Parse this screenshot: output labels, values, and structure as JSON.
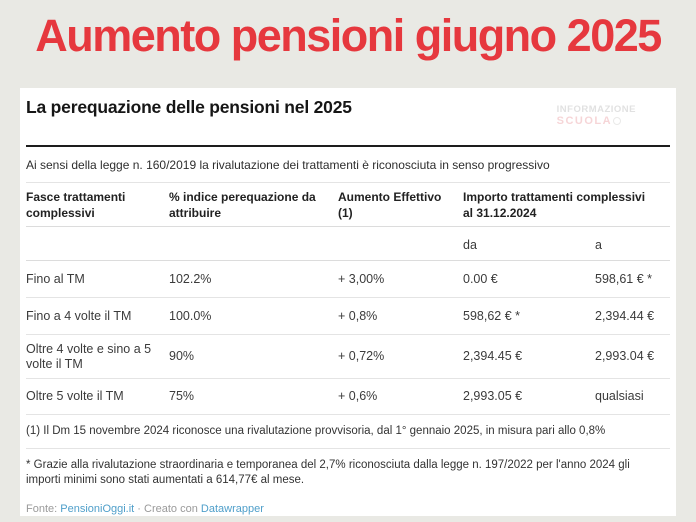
{
  "page": {
    "background_color": "#e9e9e4",
    "title": "Aumento pensioni giugno 2025",
    "title_color": "#e6383e"
  },
  "card": {
    "title": "La perequazione delle pensioni nel 2025",
    "watermark": {
      "line1": "INFORMAZIONE",
      "line2": "SCUOLA"
    },
    "intro": "Ai sensi della legge n. 160/2019 la rivalutazione dei trattamenti è riconosciuta in senso progressivo",
    "table": {
      "col_fasce": "Fasce trattamenti complessivi",
      "col_indice": "% indice perequazione da attribuire",
      "col_aumento": "Aumento Effettivo (1)",
      "col_importo": "Importo trattamenti complessivi al 31.12.2024",
      "sub_da": "da",
      "sub_a": "a",
      "rows": [
        {
          "fascia": "Fino al TM",
          "indice": "102.2%",
          "aumento": "+ 3,00%",
          "da": "0.00 €",
          "a": "598,61 € *"
        },
        {
          "fascia": "Fino a 4 volte il TM",
          "indice": "100.0%",
          "aumento": "+ 0,8%",
          "da": "598,62 € *",
          "a": "2,394.44 €"
        },
        {
          "fascia": "Oltre 4 volte e sino a 5 volte il TM",
          "indice": "90%",
          "aumento": "+ 0,72%",
          "da": "2,394.45 €",
          "a": "2,993.04 €"
        },
        {
          "fascia": "Oltre 5 volte il TM",
          "indice": "75%",
          "aumento": "+ 0,6%",
          "da": "2,993.05 €",
          "a": "qualsiasi"
        }
      ]
    },
    "footnotes": [
      "(1) Il Dm 15 novembre 2024 riconosce una rivalutazione provvisoria, dal 1° gennaio 2025, in misura pari allo 0,8%",
      "* Grazie alla rivalutazione straordinaria e temporanea del 2,7% riconosciuta dalla legge n. 197/2022 per l'anno 2024 gli importi minimi sono stati aumentati a 614,77€ al mese."
    ],
    "footer": {
      "prefix": "Fonte: ",
      "source_link": "PensioniOggi.it",
      "separator": " · ",
      "middle": "Creato con ",
      "tool_link": "Datawrapper",
      "link_color": "#4f9fca"
    }
  },
  "chart_data": {
    "type": "table",
    "title": "La perequazione delle pensioni nel 2025",
    "subtitle": "Ai sensi della legge n. 160/2019 la rivalutazione dei trattamenti è riconosciuta in senso progressivo",
    "columns": [
      "Fasce trattamenti complessivi",
      "% indice perequazione da attribuire",
      "Aumento Effettivo (1)",
      "Importo trattamenti complessivi al 31.12.2024 — da",
      "Importo trattamenti complessivi al 31.12.2024 — a"
    ],
    "rows": [
      [
        "Fino al TM",
        "102.2%",
        "+ 3,00%",
        "0.00 €",
        "598,61 € *"
      ],
      [
        "Fino a 4 volte il TM",
        "100.0%",
        "+ 0,8%",
        "598,62 € *",
        "2,394.44 €"
      ],
      [
        "Oltre 4 volte e sino a 5 volte il TM",
        "90%",
        "+ 0,72%",
        "2,394.45 €",
        "2,993.04 €"
      ],
      [
        "Oltre 5 volte il TM",
        "75%",
        "+ 0,6%",
        "2,993.05 €",
        "qualsiasi"
      ]
    ],
    "annotations": [
      "(1) Il Dm 15 novembre 2024 riconosce una rivalutazione provvisoria, dal 1° gennaio 2025, in misura pari allo 0,8%",
      "* Grazie alla rivalutazione straordinaria e temporanea del 2,7% riconosciuta dalla legge n. 197/2022 per l'anno 2024 gli importi minimi sono stati aumentati a 614,77€ al mese."
    ],
    "source": "Fonte: PensioniOggi.it · Creato con Datawrapper"
  }
}
